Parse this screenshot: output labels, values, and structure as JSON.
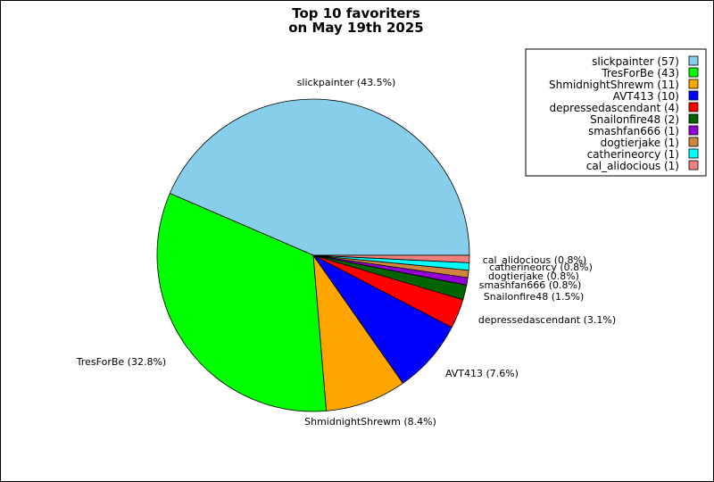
{
  "chart_data": {
    "type": "pie",
    "title_lines": [
      "Top 10 favoriters",
      "on May 19th 2025"
    ],
    "legend_position": "top-right",
    "slices": [
      {
        "name": "slickpainter",
        "value": 57,
        "percent_label": "slickpainter (43.5%)",
        "legend_label": "slickpainter (57)",
        "color": "#87ceeb"
      },
      {
        "name": "TresForBe",
        "value": 43,
        "percent_label": "TresForBe (32.8%)",
        "legend_label": "TresForBe (43)",
        "color": "#00ff00"
      },
      {
        "name": "ShmidnightShrewm",
        "value": 11,
        "percent_label": "ShmidnightShrewm (8.4%)",
        "legend_label": "ShmidnightShrewm (11)",
        "color": "#ffa500"
      },
      {
        "name": "AVT413",
        "value": 10,
        "percent_label": "AVT413 (7.6%)",
        "legend_label": "AVT413 (10)",
        "color": "#0000ff"
      },
      {
        "name": "depressedascendant",
        "value": 4,
        "percent_label": "depressedascendant (3.1%)",
        "legend_label": "depressedascendant (4)",
        "color": "#ff0000"
      },
      {
        "name": "Snailonfire48",
        "value": 2,
        "percent_label": "Snailonfire48 (1.5%)",
        "legend_label": "Snailonfire48 (2)",
        "color": "#006400"
      },
      {
        "name": "smashfan666",
        "value": 1,
        "percent_label": "smashfan666 (0.8%)",
        "legend_label": "smashfan666 (1)",
        "color": "#9400d3"
      },
      {
        "name": "dogtierjake",
        "value": 1,
        "percent_label": "dogtierjake (0.8%)",
        "legend_label": "dogtierjake (1)",
        "color": "#cd853f"
      },
      {
        "name": "catherineorcy",
        "value": 1,
        "percent_label": "catherineorcy (0.8%)",
        "legend_label": "catherineorcy (1)",
        "color": "#00ffff"
      },
      {
        "name": "cal_alidocious",
        "value": 1,
        "percent_label": "cal_alidocious (0.8%)",
        "legend_label": "cal_alidocious (1)",
        "color": "#f08080"
      }
    ]
  }
}
